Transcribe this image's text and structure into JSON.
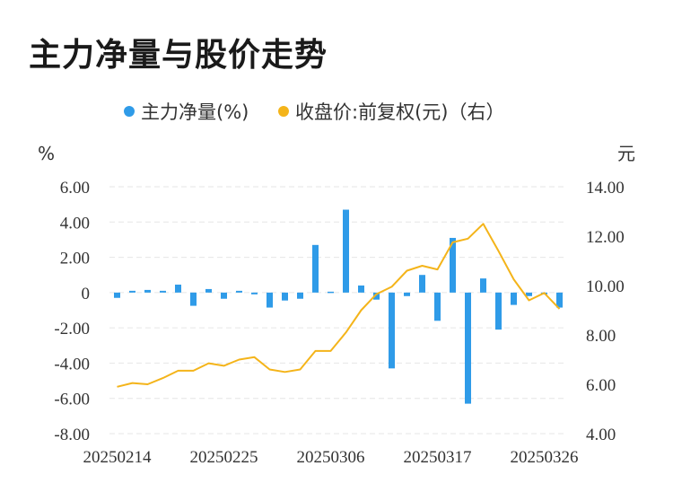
{
  "title": "主力净量与股价走势",
  "colors": {
    "bar": "#2f9be8",
    "line": "#f4b41a",
    "grid": "#e6e6e6"
  },
  "chart_data": {
    "type": "bar+line",
    "title": "主力净量与股价走势",
    "legend": [
      {
        "label": "主力净量(%)",
        "color": "#2f9be8"
      },
      {
        "label": "收盘价:前复权(元)（右）",
        "color": "#f4b41a"
      }
    ],
    "y_left": {
      "unit": "%",
      "ticks": [
        "6.00",
        "4.00",
        "2.00",
        "0",
        "-2.00",
        "-4.00",
        "-6.00",
        "-8.00"
      ],
      "range": [
        -8,
        6
      ]
    },
    "y_right": {
      "unit": "元",
      "ticks": [
        "14.00",
        "12.00",
        "10.00",
        "8.00",
        "6.00",
        "4.00"
      ],
      "range": [
        4,
        14
      ]
    },
    "x_tick_labels": [
      "20250214",
      "20250225",
      "20250306",
      "20250317",
      "20250326"
    ],
    "x_tick_index": [
      0,
      7,
      14,
      21,
      28
    ],
    "grid": true,
    "legend_position": "top",
    "series": [
      {
        "name": "主力净量(%)",
        "type": "bar",
        "values": [
          -0.3,
          0.1,
          0.15,
          0.1,
          0.45,
          -0.75,
          0.2,
          -0.35,
          0.1,
          -0.1,
          -0.85,
          -0.45,
          -0.35,
          2.7,
          0.05,
          4.7,
          0.4,
          -0.4,
          -4.3,
          -0.2,
          1.0,
          -1.6,
          3.1,
          -6.3,
          0.8,
          -2.1,
          -0.7,
          -0.2,
          -0.1,
          -0.85
        ]
      },
      {
        "name": "收盘价:前复权(元)（右）",
        "type": "line",
        "values": [
          5.9,
          6.05,
          6.0,
          6.25,
          6.55,
          6.55,
          6.85,
          6.75,
          7.0,
          7.1,
          6.6,
          6.5,
          6.6,
          7.35,
          7.35,
          8.1,
          9.0,
          9.65,
          9.95,
          10.6,
          10.8,
          10.65,
          11.75,
          11.9,
          12.5,
          11.4,
          10.25,
          9.4,
          9.7,
          9.05
        ]
      }
    ]
  }
}
